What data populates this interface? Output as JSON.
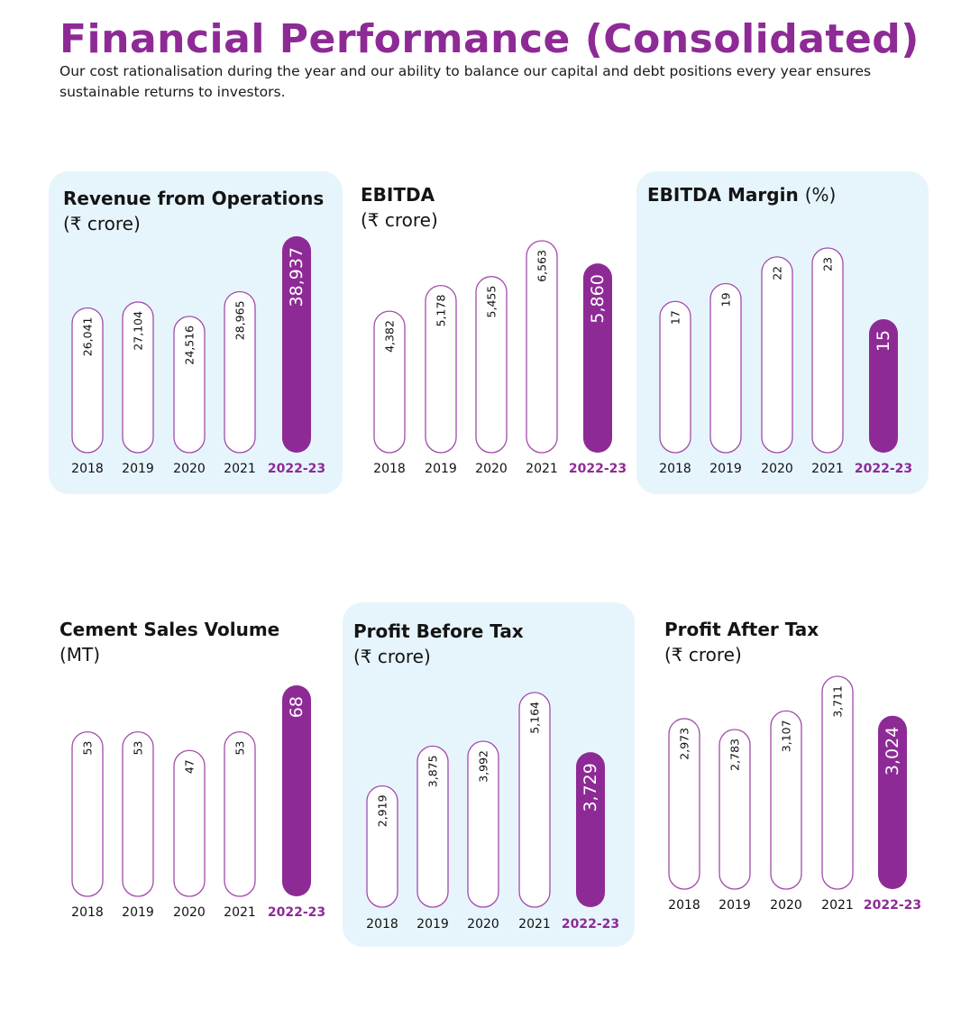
{
  "header": {
    "title": "Financial Performance (Consolidated)",
    "subtitle": "Our cost rationalisation during the year and our ability to balance our capital and debt positions every year ensures sustainable returns to investors."
  },
  "colors": {
    "accent": "#8e2a96",
    "panel_background": "#e6f5fc",
    "bar_outline": "#a24aab",
    "bar_fill": "#ffffff"
  },
  "chart_data": [
    {
      "type": "bar",
      "title": "Revenue from Operations",
      "unit": "(₹ crore)",
      "categories": [
        "2018",
        "2019",
        "2020",
        "2021",
        "2022-23"
      ],
      "values": [
        26041,
        27104,
        24516,
        28965,
        38937
      ],
      "value_labels": [
        "26,041",
        "27,104",
        "24,516",
        "28,965",
        "38,937"
      ],
      "highlight_index": 4,
      "grid": false
    },
    {
      "type": "bar",
      "title": "EBITDA",
      "unit": "(₹ crore)",
      "categories": [
        "2018",
        "2019",
        "2020",
        "2021",
        "2022-23"
      ],
      "values": [
        4382,
        5178,
        5455,
        6563,
        5860
      ],
      "value_labels": [
        "4,382",
        "5,178",
        "5,455",
        "6,563",
        "5,860"
      ],
      "highlight_index": 4,
      "grid": false
    },
    {
      "type": "bar",
      "title": "EBITDA Margin",
      "unit": "(%)",
      "categories": [
        "2018",
        "2019",
        "2020",
        "2021",
        "2022-23"
      ],
      "values": [
        17,
        19,
        22,
        23,
        15
      ],
      "value_labels": [
        "17",
        "19",
        "22",
        "23",
        "15"
      ],
      "highlight_index": 4,
      "grid": false
    },
    {
      "type": "bar",
      "title": "Cement Sales Volume",
      "unit": "(MT)",
      "categories": [
        "2018",
        "2019",
        "2020",
        "2021",
        "2022-23"
      ],
      "values": [
        53,
        53,
        47,
        53,
        68
      ],
      "value_labels": [
        "53",
        "53",
        "47",
        "53",
        "68"
      ],
      "highlight_index": 4,
      "grid": false
    },
    {
      "type": "bar",
      "title": "Profit Before Tax",
      "unit": "(₹ crore)",
      "categories": [
        "2018",
        "2019",
        "2020",
        "2021",
        "2022-23"
      ],
      "values": [
        2919,
        3875,
        3992,
        5164,
        3729
      ],
      "value_labels": [
        "2,919",
        "3,875",
        "3,992",
        "5,164",
        "3,729"
      ],
      "highlight_index": 4,
      "grid": false
    },
    {
      "type": "bar",
      "title": "Profit After Tax",
      "unit": "(₹ crore)",
      "categories": [
        "2018",
        "2019",
        "2020",
        "2021",
        "2022-23"
      ],
      "values": [
        2973,
        2783,
        3107,
        3711,
        3024
      ],
      "value_labels": [
        "2,973",
        "2,783",
        "3,107",
        "3,711",
        "3,024"
      ],
      "highlight_index": 4,
      "grid": false
    }
  ]
}
